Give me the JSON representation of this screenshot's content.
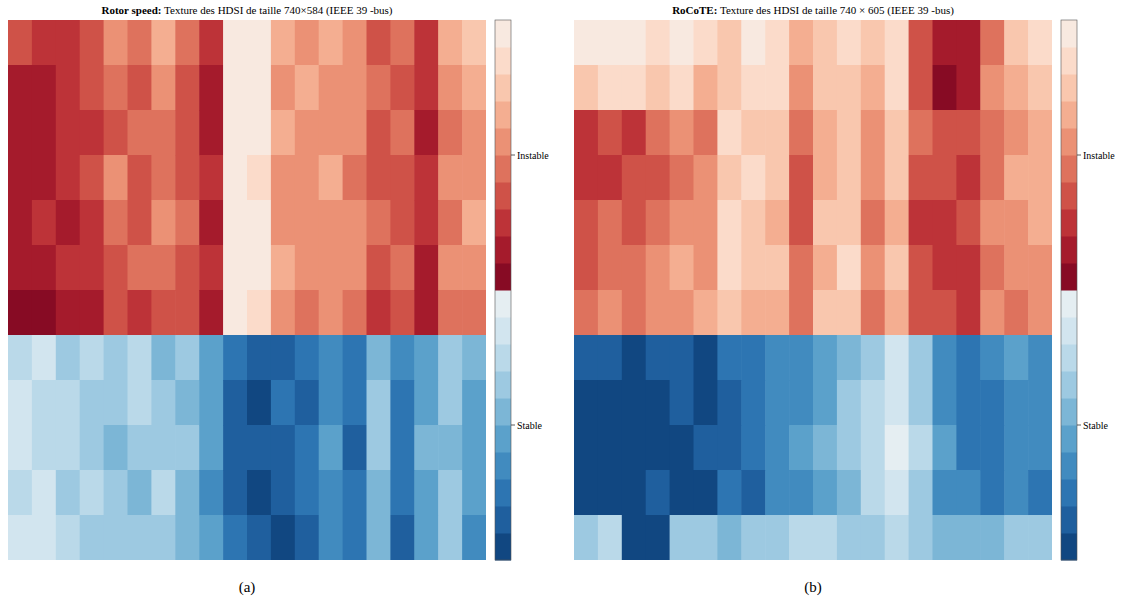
{
  "chart_data": [
    {
      "type": "heatmap",
      "title": "Rotor speed: Texture des HDSI de taille 740×584 (IEEE 39 -bus)",
      "panel_label": "(a)",
      "tick_labels": false,
      "cells": [
        [
          0.3,
          0.25,
          0.2,
          0.35,
          0.5,
          0.4,
          0.6,
          0.45,
          0.2,
          0.95,
          0.9,
          0.6,
          0.55,
          0.6,
          0.5,
          0.35,
          0.45,
          0.25,
          0.6,
          0.7
        ],
        [
          0.15,
          0.1,
          0.2,
          0.3,
          0.4,
          0.3,
          0.5,
          0.35,
          0.15,
          0.95,
          0.9,
          0.55,
          0.6,
          0.5,
          0.55,
          0.4,
          0.35,
          0.2,
          0.5,
          0.6
        ],
        [
          0.1,
          0.15,
          0.25,
          0.2,
          0.35,
          0.45,
          0.4,
          0.3,
          0.1,
          0.9,
          0.95,
          0.6,
          0.5,
          0.55,
          0.5,
          0.3,
          0.4,
          0.15,
          0.45,
          0.55
        ],
        [
          0.15,
          0.1,
          0.2,
          0.3,
          0.5,
          0.35,
          0.45,
          0.3,
          0.2,
          0.95,
          0.85,
          0.5,
          0.55,
          0.6,
          0.45,
          0.35,
          0.3,
          0.25,
          0.55,
          0.5
        ],
        [
          0.1,
          0.2,
          0.15,
          0.25,
          0.4,
          0.3,
          0.5,
          0.4,
          0.15,
          0.9,
          0.9,
          0.55,
          0.5,
          0.55,
          0.5,
          0.4,
          0.35,
          0.2,
          0.4,
          0.6
        ],
        [
          0.15,
          0.1,
          0.25,
          0.2,
          0.35,
          0.4,
          0.45,
          0.35,
          0.2,
          0.95,
          0.9,
          0.6,
          0.55,
          0.5,
          0.55,
          0.3,
          0.4,
          0.1,
          0.5,
          0.55
        ],
        [
          0.05,
          0.05,
          0.1,
          0.15,
          0.3,
          0.25,
          0.35,
          0.3,
          0.1,
          0.9,
          0.85,
          0.5,
          0.45,
          0.5,
          0.4,
          0.25,
          0.3,
          0.1,
          0.4,
          0.45
        ],
        [
          -0.2,
          -0.15,
          -0.3,
          -0.25,
          -0.35,
          -0.2,
          -0.4,
          -0.3,
          -0.5,
          -0.75,
          -0.85,
          -0.8,
          -0.7,
          -0.6,
          -0.75,
          -0.4,
          -0.65,
          -0.5,
          -0.3,
          -0.45
        ],
        [
          -0.15,
          -0.25,
          -0.2,
          -0.35,
          -0.3,
          -0.25,
          -0.35,
          -0.4,
          -0.55,
          -0.8,
          -0.9,
          -0.75,
          -0.8,
          -0.65,
          -0.7,
          -0.35,
          -0.7,
          -0.55,
          -0.35,
          -0.5
        ],
        [
          -0.1,
          -0.2,
          -0.25,
          -0.3,
          -0.4,
          -0.3,
          -0.3,
          -0.35,
          -0.5,
          -0.85,
          -0.8,
          -0.85,
          -0.75,
          -0.55,
          -0.8,
          -0.3,
          -0.75,
          -0.45,
          -0.4,
          -0.55
        ],
        [
          -0.2,
          -0.1,
          -0.3,
          -0.2,
          -0.35,
          -0.4,
          -0.25,
          -0.45,
          -0.6,
          -0.8,
          -0.9,
          -0.8,
          -0.7,
          -0.6,
          -0.75,
          -0.45,
          -0.7,
          -0.5,
          -0.3,
          -0.5
        ],
        [
          -0.1,
          -0.15,
          -0.2,
          -0.3,
          -0.3,
          -0.35,
          -0.3,
          -0.4,
          -0.55,
          -0.75,
          -0.85,
          -0.9,
          -0.8,
          -0.65,
          -0.7,
          -0.4,
          -0.8,
          -0.55,
          -0.35,
          -0.6
        ]
      ],
      "colorbar": {
        "range": [
          -1,
          1
        ],
        "ticks": [
          {
            "value": 0.5,
            "label": "Instable"
          },
          {
            "value": -0.5,
            "label": "Stable"
          }
        ]
      }
    },
    {
      "type": "heatmap",
      "title": "RoCoTE: Texture des HDSI de taille 740 × 605 (IEEE 39 -bus)",
      "panel_label": "(b)",
      "tick_labels": false,
      "cells": [
        [
          0.9,
          0.95,
          0.9,
          0.85,
          0.95,
          0.8,
          0.7,
          0.9,
          0.85,
          0.6,
          0.75,
          0.8,
          0.7,
          0.85,
          0.3,
          0.1,
          0.1,
          0.4,
          0.7,
          0.8
        ],
        [
          0.7,
          0.85,
          0.8,
          0.75,
          0.8,
          0.6,
          0.75,
          0.85,
          0.8,
          0.5,
          0.7,
          0.75,
          0.6,
          0.8,
          0.35,
          0.05,
          0.15,
          0.5,
          0.6,
          0.75
        ],
        [
          0.2,
          0.3,
          0.25,
          0.4,
          0.5,
          0.45,
          0.8,
          0.7,
          0.75,
          0.4,
          0.65,
          0.7,
          0.5,
          0.75,
          0.4,
          0.3,
          0.35,
          0.45,
          0.55,
          0.6
        ],
        [
          0.25,
          0.2,
          0.35,
          0.3,
          0.45,
          0.55,
          0.75,
          0.8,
          0.7,
          0.35,
          0.6,
          0.75,
          0.55,
          0.7,
          0.3,
          0.35,
          0.25,
          0.4,
          0.6,
          0.65
        ],
        [
          0.3,
          0.4,
          0.3,
          0.45,
          0.55,
          0.5,
          0.85,
          0.75,
          0.65,
          0.3,
          0.7,
          0.7,
          0.45,
          0.65,
          0.25,
          0.2,
          0.3,
          0.5,
          0.55,
          0.6
        ],
        [
          0.35,
          0.45,
          0.4,
          0.5,
          0.6,
          0.55,
          0.8,
          0.7,
          0.7,
          0.4,
          0.65,
          0.8,
          0.5,
          0.7,
          0.35,
          0.25,
          0.2,
          0.45,
          0.5,
          0.55
        ],
        [
          0.4,
          0.5,
          0.45,
          0.55,
          0.5,
          0.6,
          0.75,
          0.65,
          0.6,
          0.45,
          0.7,
          0.75,
          0.4,
          0.65,
          0.3,
          0.3,
          0.25,
          0.5,
          0.45,
          0.5
        ],
        [
          -0.8,
          -0.85,
          -0.9,
          -0.85,
          -0.8,
          -0.9,
          -0.75,
          -0.7,
          -0.6,
          -0.65,
          -0.55,
          -0.4,
          -0.3,
          -0.15,
          -0.35,
          -0.6,
          -0.7,
          -0.65,
          -0.55,
          -0.6
        ],
        [
          -0.9,
          -0.95,
          -0.9,
          -0.95,
          -0.85,
          -0.9,
          -0.8,
          -0.75,
          -0.65,
          -0.6,
          -0.5,
          -0.35,
          -0.25,
          -0.1,
          -0.3,
          -0.65,
          -0.75,
          -0.7,
          -0.6,
          -0.65
        ],
        [
          -0.95,
          -0.9,
          -0.95,
          -0.9,
          -0.9,
          -0.85,
          -0.8,
          -0.7,
          -0.6,
          -0.55,
          -0.45,
          -0.3,
          -0.2,
          -0.05,
          -0.25,
          -0.55,
          -0.7,
          -0.75,
          -0.65,
          -0.6
        ],
        [
          -0.9,
          -0.95,
          -0.9,
          -0.85,
          -0.9,
          -0.9,
          -0.75,
          -0.8,
          -0.65,
          -0.6,
          -0.5,
          -0.4,
          -0.25,
          -0.1,
          -0.3,
          -0.6,
          -0.65,
          -0.7,
          -0.6,
          -0.7
        ],
        [
          -0.3,
          -0.25,
          -0.9,
          -0.9,
          -0.35,
          -0.3,
          -0.4,
          -0.35,
          -0.3,
          -0.25,
          -0.2,
          -0.3,
          -0.35,
          -0.25,
          -0.3,
          -0.4,
          -0.45,
          -0.4,
          -0.35,
          -0.3
        ]
      ],
      "colorbar": {
        "range": [
          -1,
          1
        ],
        "ticks": [
          {
            "value": 0.5,
            "label": "Instable"
          },
          {
            "value": -0.5,
            "label": "Stable"
          }
        ]
      }
    }
  ]
}
